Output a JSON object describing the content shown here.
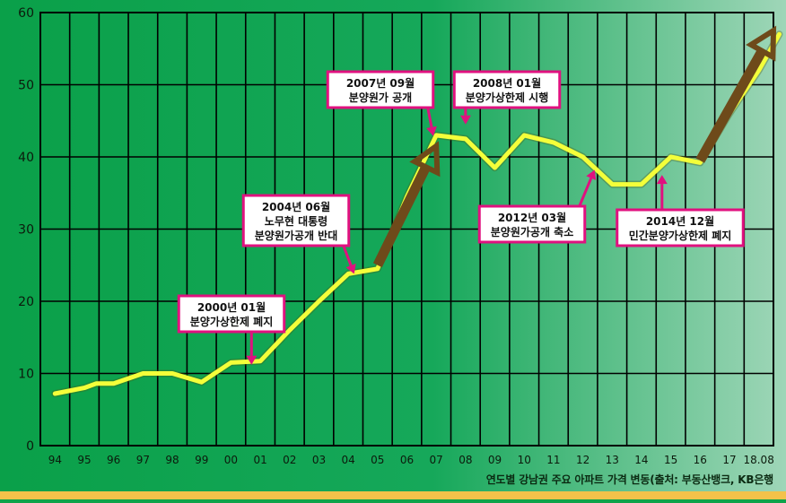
{
  "chart_data": {
    "type": "line",
    "title": "",
    "xlabel": "",
    "ylabel": "",
    "x": [
      "94",
      "95",
      "96",
      "97",
      "98",
      "99",
      "00",
      "01",
      "02",
      "03",
      "04",
      "05",
      "06",
      "07",
      "08",
      "09",
      "10",
      "11",
      "12",
      "13",
      "14",
      "15",
      "16",
      "17",
      "18.08"
    ],
    "ylim": [
      0,
      60
    ],
    "yticks": [
      0,
      10,
      20,
      30,
      40,
      50,
      60
    ],
    "grid": true,
    "series": [
      {
        "name": "",
        "points": [
          [
            0,
            7.2
          ],
          [
            1,
            8.0
          ],
          [
            1.4,
            8.6
          ],
          [
            2,
            8.6
          ],
          [
            3,
            10.0
          ],
          [
            4,
            10.0
          ],
          [
            5,
            8.8
          ],
          [
            6,
            11.5
          ],
          [
            7,
            11.7
          ],
          [
            8,
            16.0
          ],
          [
            9,
            20.0
          ],
          [
            10,
            23.8
          ],
          [
            11,
            24.5
          ],
          [
            12,
            34.5
          ],
          [
            13,
            43.0
          ],
          [
            14,
            42.5
          ],
          [
            15,
            38.5
          ],
          [
            16,
            43.0
          ],
          [
            17,
            42.0
          ],
          [
            18,
            40.0
          ],
          [
            19,
            36.2
          ],
          [
            20,
            36.2
          ],
          [
            21,
            40.0
          ],
          [
            22,
            39.2
          ],
          [
            23,
            46.0
          ],
          [
            24,
            52.0
          ],
          [
            24.7,
            57.0
          ]
        ]
      }
    ],
    "arrows": [
      {
        "from": [
          11,
          25.0
        ],
        "to": [
          13,
          41.5
        ]
      },
      {
        "from": [
          22,
          39.5
        ],
        "to": [
          24.5,
          57.5
        ]
      }
    ],
    "annotations": [
      {
        "lines": [
          "2000년 01월",
          "분양가상한제 폐지"
        ],
        "target": [
          6.7,
          11.2
        ]
      },
      {
        "lines": [
          "2004년 06월",
          "노무현 대통령",
          "분양원가공개 반대"
        ],
        "target": [
          10.2,
          23.8
        ]
      },
      {
        "lines": [
          "2007년 09월",
          "분양원가 공개"
        ],
        "target": [
          12.9,
          42.9
        ]
      },
      {
        "lines": [
          "2008년 01월",
          "분양가상한제 시행"
        ],
        "target": [
          14.0,
          44.5
        ]
      },
      {
        "lines": [
          "2012년 03월",
          "분양원가공개 축소"
        ],
        "target": [
          18.4,
          38.2
        ]
      },
      {
        "lines": [
          "2014년 12월",
          "민간분양가상한제 폐지"
        ],
        "target": [
          20.7,
          37.5
        ]
      }
    ],
    "colors": {
      "line": "#f4ff3a",
      "arrow": "#6e4a1a",
      "annotation_border": "#e0117f",
      "annotation_arrow": "#e0117f",
      "grid": "#000000"
    }
  },
  "source_note": "연도별 강남권 주요 아파트 가격 변동(출처: 부동산뱅크, KB은행"
}
